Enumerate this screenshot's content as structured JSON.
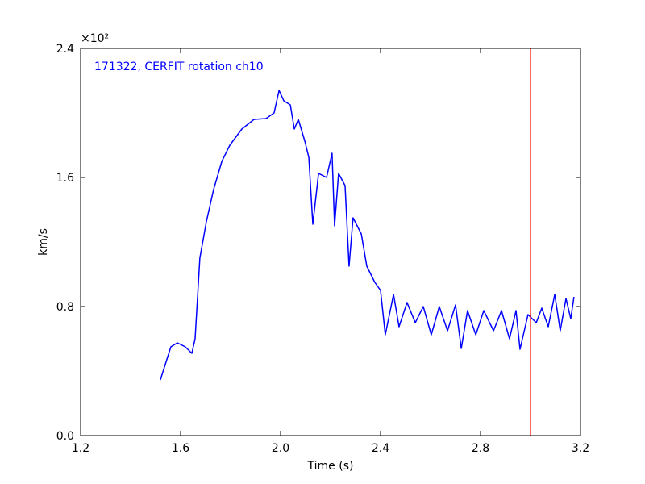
{
  "chart_data": {
    "type": "line",
    "annotation": "171322, CERFIT rotation ch10",
    "annotation_color": "#0000ff",
    "xlabel": "Time (s)",
    "ylabel": "km/s",
    "y_offset_label": "×10²",
    "x": [
      1.519,
      1.561,
      1.587,
      1.619,
      1.645,
      1.658,
      1.677,
      1.703,
      1.732,
      1.765,
      1.797,
      1.845,
      1.894,
      1.942,
      1.974,
      1.994,
      2.013,
      2.039,
      2.055,
      2.071,
      2.097,
      2.113,
      2.129,
      2.152,
      2.184,
      2.206,
      2.216,
      2.232,
      2.258,
      2.274,
      2.29,
      2.323,
      2.345,
      2.377,
      2.4,
      2.419,
      2.452,
      2.474,
      2.506,
      2.539,
      2.571,
      2.603,
      2.635,
      2.668,
      2.7,
      2.723,
      2.748,
      2.781,
      2.813,
      2.852,
      2.884,
      2.916,
      2.942,
      2.958,
      2.99,
      3.023,
      3.045,
      3.071,
      3.097,
      3.119,
      3.142,
      3.161,
      3.174
    ],
    "series": [
      {
        "color": "#0000ff",
        "values": [
          0.345,
          0.55,
          0.575,
          0.55,
          0.51,
          0.6,
          1.1,
          1.325,
          1.525,
          1.7,
          1.8,
          1.9,
          1.96,
          1.965,
          2.0,
          2.14,
          2.075,
          2.05,
          1.9,
          1.96,
          1.825,
          1.725,
          1.31,
          1.625,
          1.6,
          1.75,
          1.3,
          1.625,
          1.55,
          1.05,
          1.35,
          1.25,
          1.05,
          0.95,
          0.9,
          0.625,
          0.875,
          0.675,
          0.825,
          0.7,
          0.8,
          0.625,
          0.8,
          0.65,
          0.81,
          0.54,
          0.775,
          0.625,
          0.775,
          0.65,
          0.775,
          0.6,
          0.775,
          0.535,
          0.75,
          0.7,
          0.79,
          0.675,
          0.875,
          0.65,
          0.85,
          0.725,
          0.86
        ]
      }
    ],
    "vline": {
      "x": 3.0,
      "color": "#ff0000"
    },
    "xlim": [
      1.2,
      3.2
    ],
    "xticks": [
      1.2,
      1.6,
      {
        "value": 2.0,
        "label": "2.0"
      },
      2.4,
      2.8,
      3.2
    ],
    "ylim": [
      0,
      2.4
    ],
    "yticks": [
      {
        "value": 0,
        "label": "0.0"
      },
      0.8,
      1.6,
      2.4
    ]
  }
}
